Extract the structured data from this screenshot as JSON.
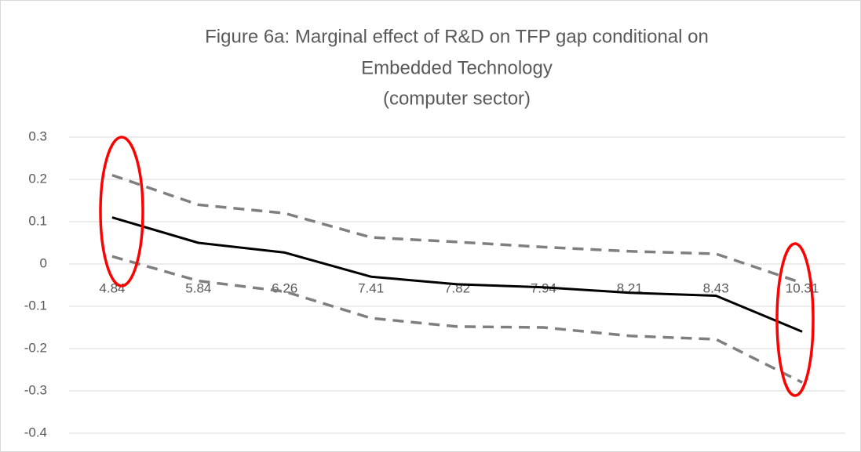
{
  "chart_data": {
    "type": "line",
    "title": [
      "Figure 6a: Marginal effect of R&D on TFP gap conditional on",
      "Embedded Technology",
      "(computer sector)"
    ],
    "categories": [
      "4.84",
      "5.84",
      "6.26",
      "7.41",
      "7.82",
      "7.94",
      "8.21",
      "8.43",
      "10.31"
    ],
    "series": [
      {
        "color": "#000000",
        "dashed": false,
        "values": [
          0.11,
          0.05,
          0.027,
          -0.03,
          -0.048,
          -0.055,
          -0.068,
          -0.075,
          -0.16
        ]
      },
      {
        "color": "#7f7f7f",
        "dashed": true,
        "values": [
          0.21,
          0.14,
          0.12,
          0.063,
          0.052,
          0.04,
          0.03,
          0.024,
          -0.045
        ]
      },
      {
        "color": "#7f7f7f",
        "dashed": true,
        "values": [
          0.018,
          -0.04,
          -0.065,
          -0.128,
          -0.148,
          -0.15,
          -0.17,
          -0.178,
          -0.28
        ]
      }
    ],
    "ylim": [
      -0.4,
      0.3
    ],
    "yticks": [
      -0.4,
      -0.3,
      -0.2,
      -0.1,
      0,
      0.1,
      0.2,
      0.3
    ],
    "grid": true
  }
}
